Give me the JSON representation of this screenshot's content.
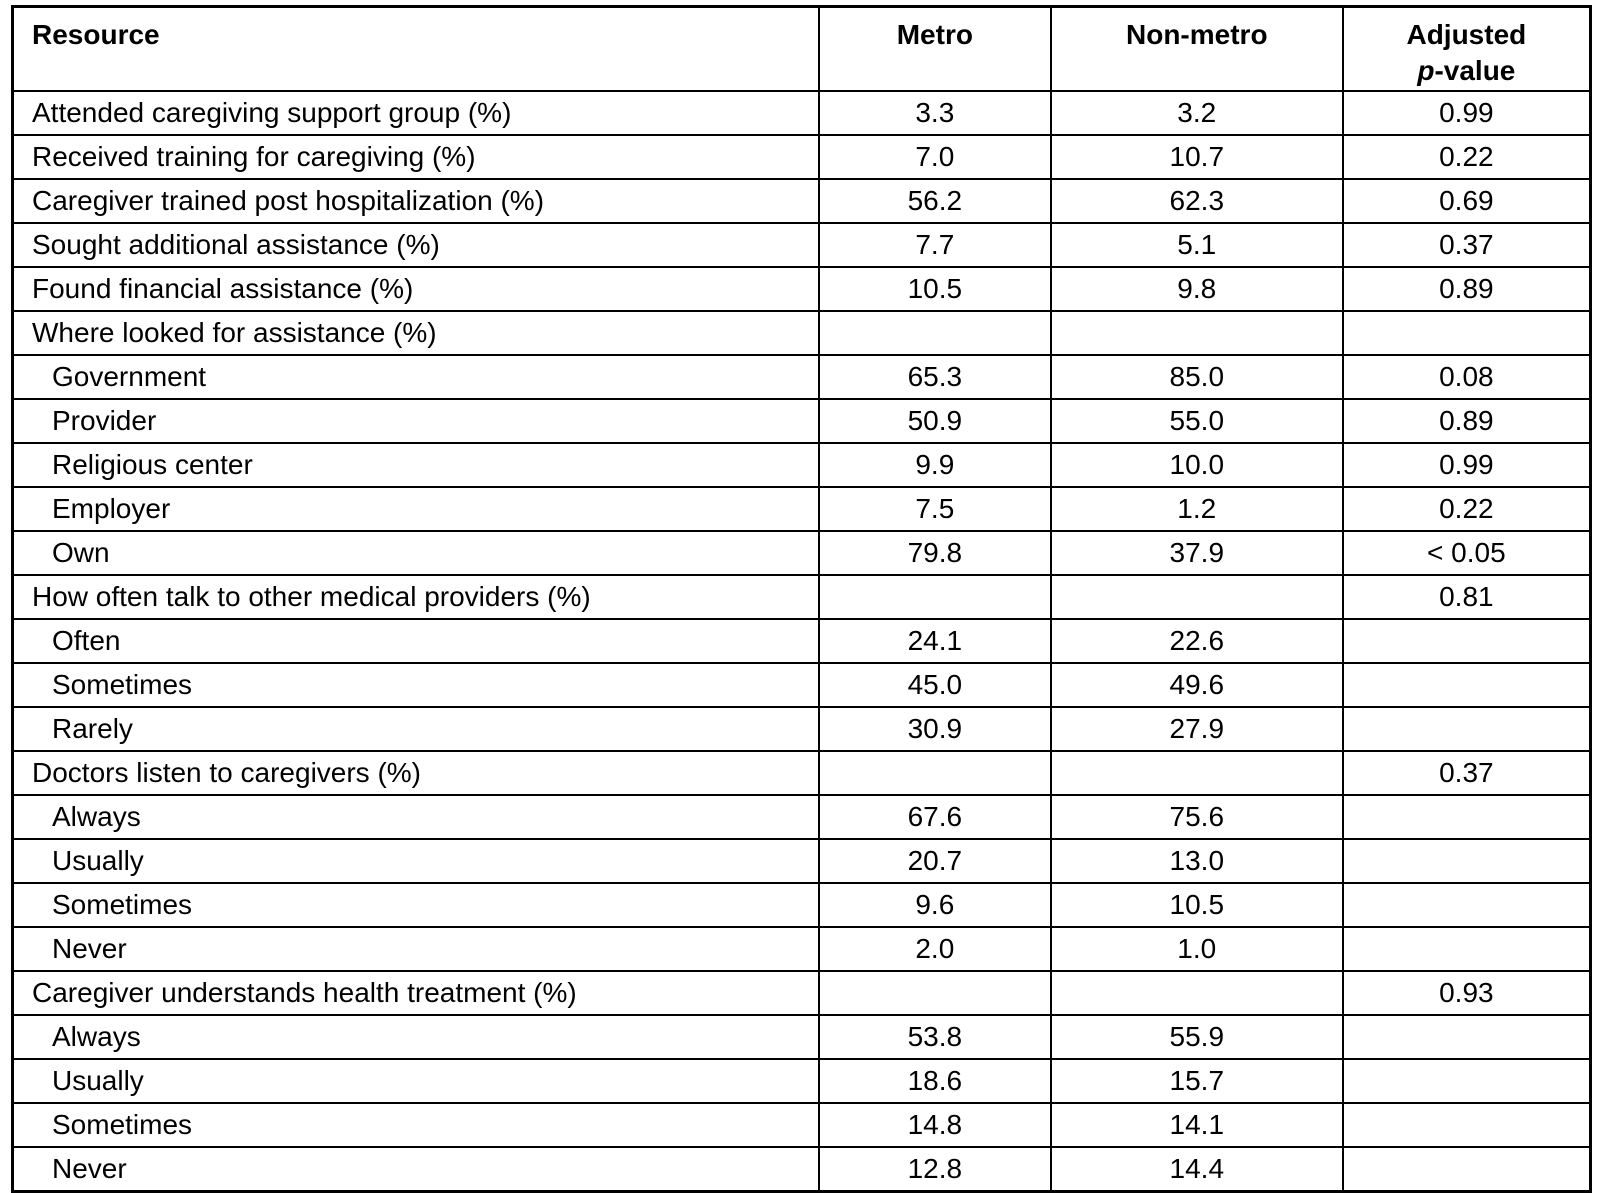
{
  "table": {
    "header": {
      "resource": "Resource",
      "metro": "Metro",
      "nonmetro": "Non-metro",
      "adjusted_line1": "Adjusted",
      "adjusted_p": "p",
      "adjusted_suffix": "-value"
    },
    "rows": [
      {
        "label": "Attended caregiving support group (%)",
        "indent": false,
        "metro": "3.3",
        "nonmetro": "3.2",
        "pvalue": "0.99"
      },
      {
        "label": "Received training for caregiving (%)",
        "indent": false,
        "metro": "7.0",
        "nonmetro": "10.7",
        "pvalue": "0.22"
      },
      {
        "label": "Caregiver trained post hospitalization (%)",
        "indent": false,
        "metro": "56.2",
        "nonmetro": "62.3",
        "pvalue": "0.69"
      },
      {
        "label": "Sought additional assistance (%)",
        "indent": false,
        "metro": "7.7",
        "nonmetro": "5.1",
        "pvalue": "0.37"
      },
      {
        "label": "Found financial assistance (%)",
        "indent": false,
        "metro": "10.5",
        "nonmetro": "9.8",
        "pvalue": "0.89"
      },
      {
        "label": "Where looked for assistance (%)",
        "indent": false,
        "metro": "",
        "nonmetro": "",
        "pvalue": ""
      },
      {
        "label": "Government",
        "indent": true,
        "metro": "65.3",
        "nonmetro": "85.0",
        "pvalue": "0.08"
      },
      {
        "label": "Provider",
        "indent": true,
        "metro": "50.9",
        "nonmetro": "55.0",
        "pvalue": "0.89"
      },
      {
        "label": "Religious center",
        "indent": true,
        "metro": "9.9",
        "nonmetro": "10.0",
        "pvalue": "0.99"
      },
      {
        "label": "Employer",
        "indent": true,
        "metro": "7.5",
        "nonmetro": "1.2",
        "pvalue": "0.22"
      },
      {
        "label": "Own",
        "indent": true,
        "metro": "79.8",
        "nonmetro": "37.9",
        "pvalue": "< 0.05"
      },
      {
        "label": "How often talk to other medical providers (%)",
        "indent": false,
        "metro": "",
        "nonmetro": "",
        "pvalue": "0.81"
      },
      {
        "label": "Often",
        "indent": true,
        "metro": "24.1",
        "nonmetro": "22.6",
        "pvalue": ""
      },
      {
        "label": "Sometimes",
        "indent": true,
        "metro": "45.0",
        "nonmetro": "49.6",
        "pvalue": ""
      },
      {
        "label": "Rarely",
        "indent": true,
        "metro": "30.9",
        "nonmetro": "27.9",
        "pvalue": ""
      },
      {
        "label": "Doctors listen to caregivers (%)",
        "indent": false,
        "metro": "",
        "nonmetro": "",
        "pvalue": "0.37"
      },
      {
        "label": "Always",
        "indent": true,
        "metro": "67.6",
        "nonmetro": "75.6",
        "pvalue": ""
      },
      {
        "label": "Usually",
        "indent": true,
        "metro": "20.7",
        "nonmetro": "13.0",
        "pvalue": ""
      },
      {
        "label": "Sometimes",
        "indent": true,
        "metro": "9.6",
        "nonmetro": "10.5",
        "pvalue": ""
      },
      {
        "label": "Never",
        "indent": true,
        "metro": "2.0",
        "nonmetro": "1.0",
        "pvalue": ""
      },
      {
        "label": "Caregiver understands health treatment (%)",
        "indent": false,
        "metro": "",
        "nonmetro": "",
        "pvalue": "0.93"
      },
      {
        "label": "Always",
        "indent": true,
        "metro": "53.8",
        "nonmetro": "55.9",
        "pvalue": ""
      },
      {
        "label": "Usually",
        "indent": true,
        "metro": "18.6",
        "nonmetro": "15.7",
        "pvalue": ""
      },
      {
        "label": "Sometimes",
        "indent": true,
        "metro": "14.8",
        "nonmetro": "14.1",
        "pvalue": ""
      },
      {
        "label": "Never",
        "indent": true,
        "metro": "12.8",
        "nonmetro": "14.4",
        "pvalue": ""
      }
    ]
  }
}
